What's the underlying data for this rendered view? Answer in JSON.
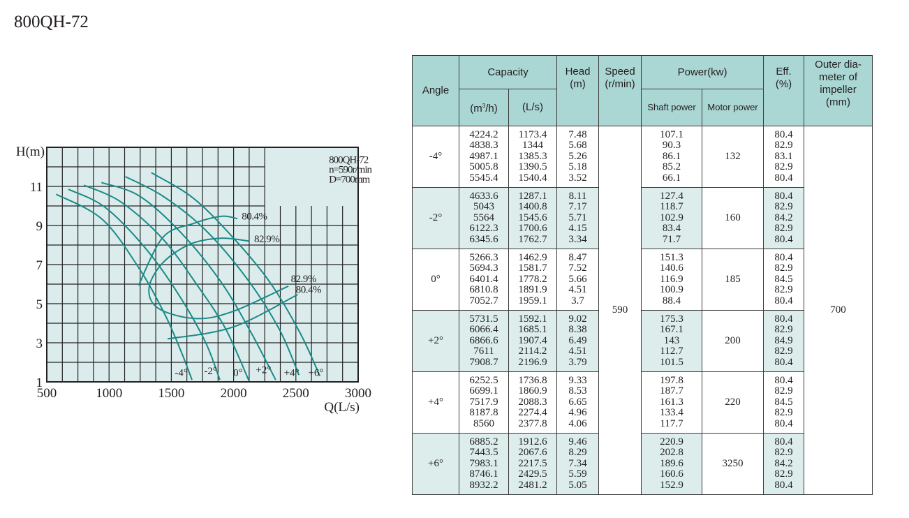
{
  "title": "800QH-72",
  "chart_data": {
    "type": "line",
    "title": "",
    "xlabel": "Q(L/s)",
    "ylabel": "H(m)",
    "xlim": [
      500,
      3000
    ],
    "ylim": [
      1,
      13
    ],
    "xticks": [
      "500",
      "1000",
      "1500",
      "2000",
      "2500",
      "3000"
    ],
    "yticks": [
      "1",
      "3",
      "5",
      "7",
      "9",
      "11"
    ],
    "grid": true,
    "inset_lines": [
      "800QH-72",
      "n=590r/min",
      "D=700mm"
    ],
    "series": [
      {
        "name": "-4°",
        "label_at": [
          1580,
          1.3
        ],
        "points": [
          [
            575,
            10.6
          ],
          [
            948,
            9.3
          ],
          [
            1246,
            6.76
          ],
          [
            1452,
            4.4
          ],
          [
            1582,
            2.5
          ],
          [
            1666,
            1.1
          ]
        ]
      },
      {
        "name": "-2°",
        "label_at": [
          1815,
          1.4
        ],
        "points": [
          [
            674,
            10.85
          ],
          [
            966,
            9.94
          ],
          [
            1284,
            7.9
          ],
          [
            1545,
            5.6
          ],
          [
            1769,
            3.1
          ],
          [
            1890,
            1.1
          ]
        ]
      },
      {
        "name": "0°",
        "label_at": [
          2035,
          1.3
        ],
        "points": [
          [
            799,
            11.06
          ],
          [
            1097,
            10.2
          ],
          [
            1433,
            8.3
          ],
          [
            1713,
            5.9
          ],
          [
            1937,
            3.7
          ],
          [
            2123,
            1.06
          ]
        ]
      },
      {
        "name": "+2°",
        "label_at": [
          2240,
          1.45
        ],
        "points": [
          [
            939,
            11.2
          ],
          [
            1246,
            10.5
          ],
          [
            1582,
            8.6
          ],
          [
            1900,
            6.1
          ],
          [
            2142,
            3.5
          ],
          [
            2338,
            1.1
          ]
        ]
      },
      {
        "name": "+4°",
        "label_at": [
          2465,
          1.3
        ],
        "points": [
          [
            1131,
            11.5
          ],
          [
            1433,
            10.5
          ],
          [
            1769,
            8.8
          ],
          [
            2105,
            6.3
          ],
          [
            2366,
            3.7
          ],
          [
            2525,
            1.35
          ]
        ]
      },
      {
        "name": "+6°",
        "label_at": [
          2660,
          1.3
        ],
        "points": [
          [
            1340,
            11.7
          ],
          [
            1676,
            10.4
          ],
          [
            1993,
            8.4
          ],
          [
            2291,
            6.1
          ],
          [
            2534,
            3.5
          ],
          [
            2693,
            1.3
          ]
        ]
      }
    ],
    "efficiency_curves": [
      {
        "name": "80.4%",
        "label_at": [
          2065,
          9.3
        ],
        "points": [
          [
            1237,
            5.94
          ],
          [
            1433,
            8.4
          ],
          [
            1676,
            9.1
          ],
          [
            1900,
            9.47
          ],
          [
            2030,
            9.35
          ]
        ]
      },
      {
        "name": "82.9%",
        "label_at": [
          2165,
          8.15
        ],
        "points": [
          [
            2123,
            8.2
          ],
          [
            1900,
            8.35
          ],
          [
            1657,
            8.06
          ],
          [
            1433,
            7.1
          ],
          [
            1321,
            5.8
          ],
          [
            1396,
            4.76
          ],
          [
            1694,
            4.24
          ],
          [
            1993,
            4.6
          ],
          [
            2440,
            5.9
          ]
        ]
      },
      {
        "name": "82.9%",
        "label_at": [
          2460,
          6.1
        ],
        "points": []
      },
      {
        "name": "80.4%",
        "label_at": [
          2500,
          5.55
        ],
        "points": [
          [
            1470,
            3.2
          ],
          [
            1993,
            3.8
          ],
          [
            2515,
            5.47
          ]
        ]
      }
    ]
  },
  "table": {
    "headers": {
      "angle": "Angle",
      "capacity": "Capacity",
      "cap_m3h_pre": "(m",
      "cap_m3h_sup": "3",
      "cap_m3h_post": "/h)",
      "cap_ls": "(L/s)",
      "head": "Head",
      "head_unit": "(m)",
      "speed": "Speed",
      "speed_unit": "(r/min)",
      "power": "Power(kw)",
      "shaft": "Shaft power",
      "motor": "Motor power",
      "eff": "Eff.",
      "eff_unit": "(%)",
      "outer": "Outer dia-",
      "outer2": "meter of",
      "outer3": "impeller",
      "outer4": "(mm)"
    },
    "speed": "590",
    "outer_diameter": "700",
    "groups": [
      {
        "angle": "-4°",
        "m3h": [
          "4224.2",
          "4838.3",
          "4987.1",
          "5005.8",
          "5545.4"
        ],
        "ls": [
          "1173.4",
          "1344",
          "1385.3",
          "1390.5",
          "1540.4"
        ],
        "head": [
          "7.48",
          "5.68",
          "5.26",
          "5.18",
          "3.52"
        ],
        "shaft": [
          "107.1",
          "90.3",
          "86.1",
          "85.2",
          "66.1"
        ],
        "motor": "132",
        "eff": [
          "80.4",
          "82.9",
          "83.1",
          "82.9",
          "80.4"
        ]
      },
      {
        "angle": "-2°",
        "m3h": [
          "4633.6",
          "5043",
          "5564",
          "6122.3",
          "6345.6"
        ],
        "ls": [
          "1287.1",
          "1400.8",
          "1545.6",
          "1700.6",
          "1762.7"
        ],
        "head": [
          "8.11",
          "7.17",
          "5.71",
          "4.15",
          "3.34"
        ],
        "shaft": [
          "127.4",
          "118.7",
          "102.9",
          "83.4",
          "71.7"
        ],
        "motor": "160",
        "eff": [
          "80.4",
          "82.9",
          "84.2",
          "82.9",
          "80.4"
        ]
      },
      {
        "angle": "0°",
        "m3h": [
          "5266.3",
          "5694.3",
          "6401.4",
          "6810.8",
          "7052.7"
        ],
        "ls": [
          "1462.9",
          "1581.7",
          "1778.2",
          "1891.9",
          "1959.1"
        ],
        "head": [
          "8.47",
          "7.52",
          "5.66",
          "4.51",
          "3.7"
        ],
        "shaft": [
          "151.3",
          "140.6",
          "116.9",
          "100.9",
          "88.4"
        ],
        "motor": "185",
        "eff": [
          "80.4",
          "82.9",
          "84.5",
          "82.9",
          "80.4"
        ]
      },
      {
        "angle": "+2°",
        "m3h": [
          "5731.5",
          "6066.4",
          "6866.6",
          "7611",
          "7908.7"
        ],
        "ls": [
          "1592.1",
          "1685.1",
          "1907.4",
          "2114.2",
          "2196.9"
        ],
        "head": [
          "9.02",
          "8.38",
          "6.49",
          "4.51",
          "3.79"
        ],
        "shaft": [
          "175.3",
          "167.1",
          "143",
          "112.7",
          "101.5"
        ],
        "motor": "200",
        "eff": [
          "80.4",
          "82.9",
          "84.9",
          "82.9",
          "80.4"
        ]
      },
      {
        "angle": "+4°",
        "m3h": [
          "6252.5",
          "6699.1",
          "7517.9",
          "8187.8",
          "8560"
        ],
        "ls": [
          "1736.8",
          "1860.9",
          "2088.3",
          "2274.4",
          "2377.8"
        ],
        "head": [
          "9.33",
          "8.53",
          "6.65",
          "4.96",
          "4.06"
        ],
        "shaft": [
          "197.8",
          "187.7",
          "161.3",
          "133.4",
          "117.7"
        ],
        "motor": "220",
        "eff": [
          "80.4",
          "82.9",
          "84.5",
          "82.9",
          "80.4"
        ]
      },
      {
        "angle": "+6°",
        "m3h": [
          "6885.2",
          "7443.5",
          "7983.1",
          "8746.1",
          "8932.2"
        ],
        "ls": [
          "1912.6",
          "2067.6",
          "2217.5",
          "2429.5",
          "2481.2"
        ],
        "head": [
          "9.46",
          "8.29",
          "7.34",
          "5.59",
          "5.05"
        ],
        "shaft": [
          "220.9",
          "202.8",
          "189.6",
          "160.6",
          "152.9"
        ],
        "motor": "3250",
        "eff": [
          "80.4",
          "82.9",
          "84.2",
          "82.9",
          "80.4"
        ]
      }
    ]
  },
  "colors": {
    "curve": "#1a8a87",
    "plot_bg": "#dcecec",
    "header_bg": "#aad6d3",
    "shade_bg": "#dcedec"
  }
}
